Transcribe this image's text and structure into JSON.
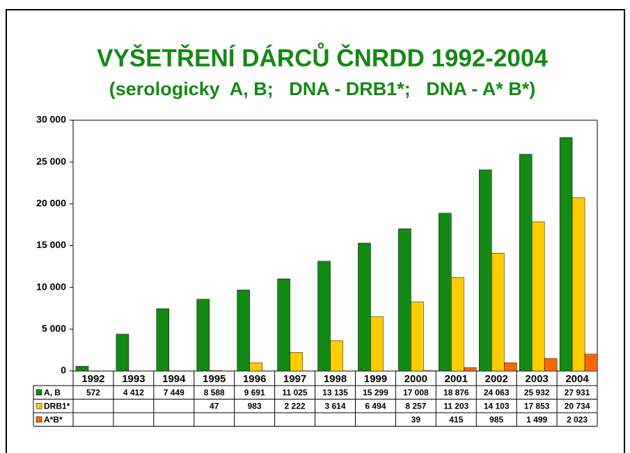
{
  "chart_data": {
    "type": "bar",
    "title": "VYŠETŘENÍ DÁRCŮ ČNRDD 1992-2004",
    "subtitle": "(serologicky  A, B;   DNA - DRB1*;   DNA - A* B*)",
    "categories": [
      "1992",
      "1993",
      "1994",
      "1995",
      "1996",
      "1997",
      "1998",
      "1999",
      "2000",
      "2001",
      "2002",
      "2003",
      "2004"
    ],
    "series": [
      {
        "name": "A, B",
        "color": "#138a13",
        "values": [
          572,
          4412,
          7449,
          8588,
          9691,
          11025,
          13135,
          15299,
          17008,
          18876,
          24063,
          25932,
          27931
        ],
        "value_labels": [
          "572",
          "4 412",
          "7 449",
          "8 588",
          "9 691",
          "11 025",
          "13 135",
          "15 299",
          "17 008",
          "18 876",
          "24 063",
          "25 932",
          "27 931"
        ]
      },
      {
        "name": "DRB1*",
        "color": "#ffcc00",
        "values": [
          null,
          null,
          null,
          47,
          983,
          2222,
          3614,
          6494,
          8257,
          11203,
          14103,
          17853,
          20734
        ],
        "value_labels": [
          null,
          null,
          null,
          "47",
          "983",
          "2 222",
          "3 614",
          "6 494",
          "8 257",
          "11 203",
          "14 103",
          "17 853",
          "20 734"
        ]
      },
      {
        "name": "A*B*",
        "color": "#ff6600",
        "values": [
          null,
          null,
          null,
          null,
          null,
          null,
          null,
          null,
          39,
          415,
          985,
          1499,
          2023
        ],
        "value_labels": [
          null,
          null,
          null,
          null,
          null,
          null,
          null,
          null,
          "39",
          "415",
          "985",
          "1 499",
          "2 023"
        ]
      }
    ],
    "ylim": [
      0,
      30000
    ],
    "yticks": [
      0,
      {
        "value": 5000,
        "label": "5 000"
      },
      {
        "value": 10000,
        "label": "10 000"
      },
      {
        "value": 15000,
        "label": "15 000"
      },
      {
        "value": 20000,
        "label": "20 000"
      },
      {
        "value": 25000,
        "label": "25 000"
      },
      {
        "value": 30000,
        "label": "30 000"
      }
    ]
  }
}
